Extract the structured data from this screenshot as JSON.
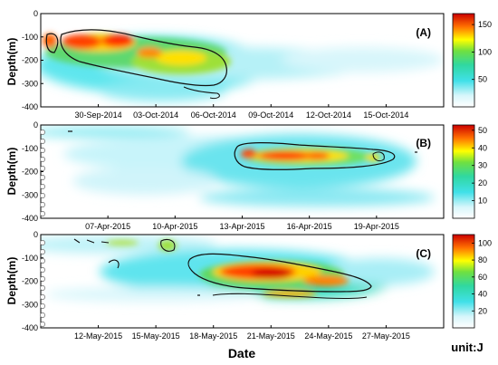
{
  "chart_data": [
    {
      "type": "heatmap",
      "panel_label": "(A)",
      "ylabel": "Depth(m)",
      "ylim": [
        -400,
        0
      ],
      "y_ticks": [
        "0",
        "-100",
        "-200",
        "-300",
        "-400"
      ],
      "x_ticks": [
        "30-Sep-2014",
        "03-Oct-2014",
        "06-Oct-2014",
        "09-Oct-2014",
        "12-Oct-2014",
        "15-Oct-2014"
      ],
      "x_range": [
        "2014-09-27",
        "2014-10-18"
      ],
      "colorbar_ticks": [
        50,
        100,
        150
      ],
      "colorbar_range": [
        0,
        170
      ],
      "blobs": [
        {
          "date": "2014-09-28",
          "depth": -125,
          "value": 150
        },
        {
          "date": "2014-09-29",
          "depth": -130,
          "value": 155
        },
        {
          "date": "2014-09-30",
          "depth": -135,
          "value": 140
        },
        {
          "date": "2014-10-01",
          "depth": -150,
          "value": 130
        },
        {
          "date": "2014-10-02",
          "depth": -175,
          "value": 105
        },
        {
          "date": "2014-10-03",
          "depth": -190,
          "value": 100
        },
        {
          "date": "2014-10-04",
          "depth": -200,
          "value": 95
        },
        {
          "date": "2014-10-05",
          "depth": -215,
          "value": 85
        }
      ]
    },
    {
      "type": "heatmap",
      "panel_label": "(B)",
      "ylabel": "Depth(m)",
      "ylim": [
        -400,
        0
      ],
      "y_ticks": [
        "0",
        "-100",
        "-200",
        "-300",
        "-400"
      ],
      "x_ticks": [
        "07-Apr-2015",
        "10-Apr-2015",
        "13-Apr-2015",
        "16-Apr-2015",
        "19-Apr-2015"
      ],
      "x_range": [
        "2015-04-04",
        "2015-04-22"
      ],
      "colorbar_ticks": [
        10,
        20,
        30,
        40,
        50
      ],
      "colorbar_range": [
        0,
        53
      ],
      "blobs": [
        {
          "date": "2015-04-13",
          "depth": -150,
          "value": 35
        },
        {
          "date": "2015-04-14",
          "depth": -150,
          "value": 45
        },
        {
          "date": "2015-04-15",
          "depth": -145,
          "value": 50
        },
        {
          "date": "2015-04-16",
          "depth": -145,
          "value": 50
        },
        {
          "date": "2015-04-17",
          "depth": -140,
          "value": 42
        },
        {
          "date": "2015-04-18",
          "depth": -130,
          "value": 35
        }
      ]
    },
    {
      "type": "heatmap",
      "panel_label": "(C)",
      "ylabel": "Depth(m)",
      "xlabel": "Date",
      "ylim": [
        -400,
        0
      ],
      "y_ticks": [
        "0",
        "-100",
        "-200",
        "-300",
        "-400"
      ],
      "x_ticks": [
        "12-May-2015",
        "15-May-2015",
        "18-May-2015",
        "21-May-2015",
        "24-May-2015",
        "27-May-2015"
      ],
      "x_range": [
        "2015-05-09",
        "2015-05-30"
      ],
      "colorbar_ticks": [
        20,
        40,
        60,
        80,
        100
      ],
      "colorbar_range": [
        0,
        110
      ],
      "unit": "unit:J",
      "blobs": [
        {
          "date": "2015-05-15",
          "depth": -60,
          "value": 60
        },
        {
          "date": "2015-05-17",
          "depth": -130,
          "value": 55
        },
        {
          "date": "2015-05-19",
          "depth": -180,
          "value": 100
        },
        {
          "date": "2015-05-20",
          "depth": -190,
          "value": 110
        },
        {
          "date": "2015-05-21",
          "depth": -200,
          "value": 105
        },
        {
          "date": "2015-05-22",
          "depth": -210,
          "value": 90
        },
        {
          "date": "2015-05-23",
          "depth": -220,
          "value": 70
        }
      ]
    }
  ]
}
